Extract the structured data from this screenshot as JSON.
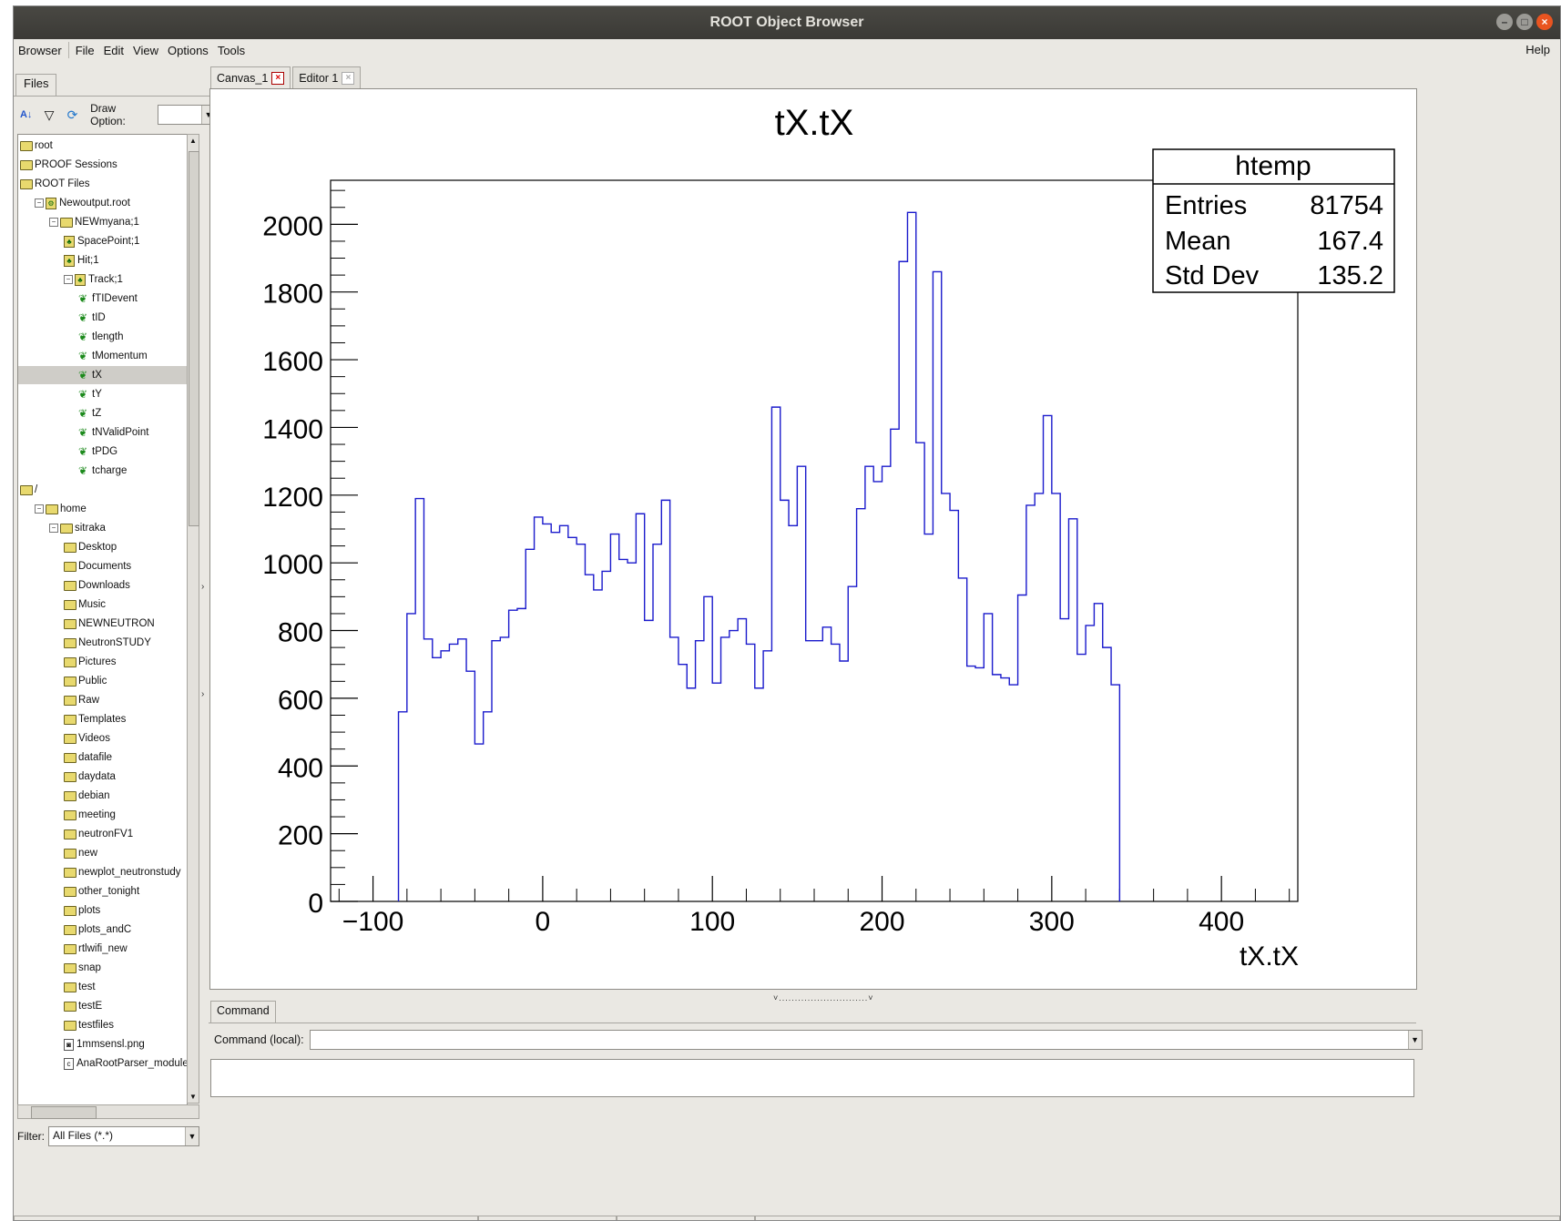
{
  "window": {
    "title": "ROOT Object Browser"
  },
  "menubar": {
    "items": [
      "Browser",
      "File",
      "Edit",
      "View",
      "Options",
      "Tools"
    ],
    "help": "Help"
  },
  "left_panel": {
    "tab": "Files",
    "draw_option_label": "Draw Option:",
    "draw_option_value": "",
    "filter_label": "Filter:",
    "filter_value": "All Files (*.*)",
    "tree": [
      {
        "label": "root",
        "icon": "folder-icon",
        "depth": 0
      },
      {
        "label": "PROOF Sessions",
        "icon": "folder-icon",
        "depth": 0
      },
      {
        "label": "ROOT Files",
        "icon": "folder-icon",
        "depth": 0
      },
      {
        "label": "Newoutput.root",
        "icon": "root-file-icon",
        "depth": 1,
        "expanded": true
      },
      {
        "label": "NEWmyana;1",
        "icon": "folder-icon",
        "depth": 2,
        "expanded": true
      },
      {
        "label": "SpacePoint;1",
        "icon": "tree-icon",
        "depth": 3
      },
      {
        "label": "Hit;1",
        "icon": "tree-icon",
        "depth": 3
      },
      {
        "label": "Track;1",
        "icon": "tree-icon",
        "depth": 3,
        "expanded": true
      },
      {
        "label": "fTIDevent",
        "icon": "leaf-icon",
        "depth": 4
      },
      {
        "label": "tID",
        "icon": "leaf-icon",
        "depth": 4
      },
      {
        "label": "tlength",
        "icon": "leaf-icon",
        "depth": 4
      },
      {
        "label": "tMomentum",
        "icon": "leaf-icon",
        "depth": 4
      },
      {
        "label": "tX",
        "icon": "leaf-icon",
        "depth": 4,
        "selected": true
      },
      {
        "label": "tY",
        "icon": "leaf-icon",
        "depth": 4
      },
      {
        "label": "tZ",
        "icon": "leaf-icon",
        "depth": 4
      },
      {
        "label": "tNValidPoint",
        "icon": "leaf-icon",
        "depth": 4
      },
      {
        "label": "tPDG",
        "icon": "leaf-icon",
        "depth": 4
      },
      {
        "label": "tcharge",
        "icon": "leaf-icon",
        "depth": 4
      },
      {
        "label": "/",
        "icon": "folder-icon",
        "depth": 0
      },
      {
        "label": "home",
        "icon": "folder-icon",
        "depth": 1,
        "expanded": true
      },
      {
        "label": "sitraka",
        "icon": "folder-icon",
        "depth": 2,
        "expanded": true
      },
      {
        "label": "Desktop",
        "icon": "folder-icon",
        "depth": 3
      },
      {
        "label": "Documents",
        "icon": "folder-icon",
        "depth": 3
      },
      {
        "label": "Downloads",
        "icon": "folder-icon",
        "depth": 3
      },
      {
        "label": "Music",
        "icon": "folder-icon",
        "depth": 3
      },
      {
        "label": "NEWNEUTRON",
        "icon": "folder-icon",
        "depth": 3
      },
      {
        "label": "NeutronSTUDY",
        "icon": "folder-icon",
        "depth": 3
      },
      {
        "label": "Pictures",
        "icon": "folder-icon",
        "depth": 3
      },
      {
        "label": "Public",
        "icon": "folder-icon",
        "depth": 3
      },
      {
        "label": "Raw",
        "icon": "folder-icon",
        "depth": 3
      },
      {
        "label": "Templates",
        "icon": "folder-icon",
        "depth": 3
      },
      {
        "label": "Videos",
        "icon": "folder-icon",
        "depth": 3
      },
      {
        "label": "datafile",
        "icon": "folder-icon",
        "depth": 3
      },
      {
        "label": "daydata",
        "icon": "folder-icon",
        "depth": 3
      },
      {
        "label": "debian",
        "icon": "folder-icon",
        "depth": 3
      },
      {
        "label": "meeting",
        "icon": "folder-icon",
        "depth": 3
      },
      {
        "label": "neutronFV1",
        "icon": "folder-icon",
        "depth": 3
      },
      {
        "label": "new",
        "icon": "folder-icon",
        "depth": 3
      },
      {
        "label": "newplot_neutronstudy",
        "icon": "folder-icon",
        "depth": 3
      },
      {
        "label": "other_tonight",
        "icon": "folder-icon",
        "depth": 3
      },
      {
        "label": "plots",
        "icon": "folder-icon",
        "depth": 3
      },
      {
        "label": "plots_andC",
        "icon": "folder-icon",
        "depth": 3
      },
      {
        "label": "rtlwifi_new",
        "icon": "folder-icon",
        "depth": 3
      },
      {
        "label": "snap",
        "icon": "folder-icon",
        "depth": 3
      },
      {
        "label": "test",
        "icon": "folder-icon",
        "depth": 3
      },
      {
        "label": "testE",
        "icon": "folder-icon",
        "depth": 3
      },
      {
        "label": "testfiles",
        "icon": "folder-icon",
        "depth": 3
      },
      {
        "label": "1mmsensl.png",
        "icon": "image-file-icon",
        "depth": 3
      },
      {
        "label": "AnaRootParser_module.cc",
        "icon": "source-file-icon",
        "depth": 3
      }
    ]
  },
  "tabs": [
    {
      "label": "Canvas_1",
      "active": true
    },
    {
      "label": "Editor 1",
      "active": false
    }
  ],
  "command": {
    "tab": "Command",
    "label": "Command (local):",
    "value": ""
  },
  "colors": {
    "histogram_line": "#1a1acc",
    "close_button": "#e95420",
    "selection": "#cfcdc8"
  },
  "chart_data": {
    "type": "step-histogram",
    "title": "tX.tX",
    "xlabel": "tX.tX",
    "ylabel": "",
    "xlim": [
      -125,
      445
    ],
    "ylim": [
      0,
      2130
    ],
    "x_ticks": [
      -100,
      0,
      100,
      200,
      300,
      400
    ],
    "x_tick_labels": [
      "−100",
      "0",
      "100",
      "200",
      "300",
      "400"
    ],
    "y_ticks": [
      0,
      200,
      400,
      600,
      800,
      1000,
      1200,
      1400,
      1600,
      1800,
      2000
    ],
    "bin_edges_start": -85,
    "bin_width": 5,
    "values": [
      560,
      850,
      1190,
      775,
      720,
      740,
      760,
      775,
      680,
      465,
      560,
      770,
      780,
      860,
      865,
      1040,
      1135,
      1115,
      1090,
      1110,
      1075,
      1055,
      965,
      920,
      975,
      1085,
      1010,
      1000,
      1145,
      830,
      1055,
      1185,
      780,
      700,
      630,
      770,
      900,
      645,
      780,
      800,
      835,
      760,
      630,
      740,
      1460,
      1185,
      1110,
      1285,
      770,
      770,
      810,
      760,
      710,
      930,
      1160,
      1285,
      1240,
      1285,
      1395,
      1890,
      2035,
      1355,
      1085,
      1860,
      1205,
      1155,
      955,
      695,
      690,
      850,
      670,
      660,
      640,
      905,
      1170,
      1205,
      1435,
      1205,
      835,
      1130,
      730,
      815,
      880,
      750,
      640
    ],
    "stats": {
      "name": "htemp",
      "entries_label": "Entries",
      "entries": "81754",
      "mean_label": "Mean",
      "mean": "167.4",
      "std_label": "Std Dev",
      "std": "135.2"
    }
  }
}
